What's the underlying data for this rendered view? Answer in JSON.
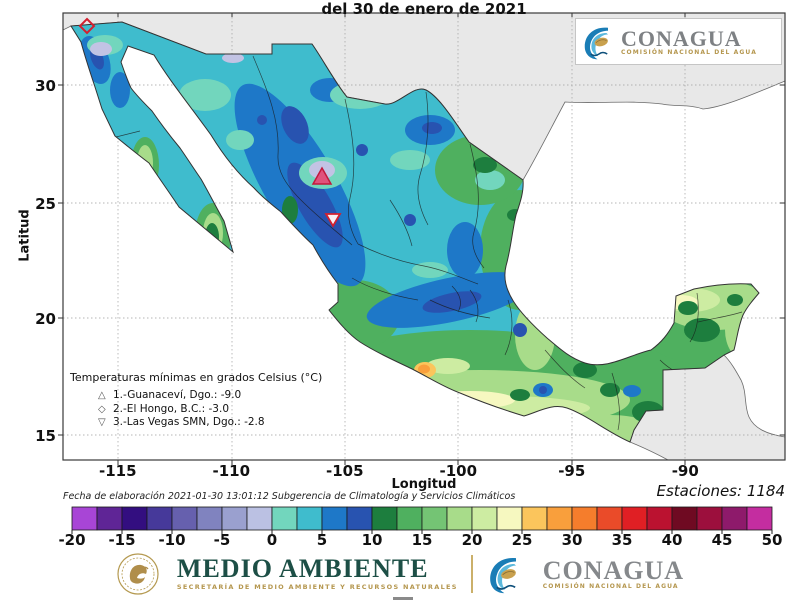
{
  "title": "del 30 de enero de 2021",
  "axes": {
    "x_label": "Longitud",
    "y_label": "Latitud",
    "x_ticks": [
      "-115",
      "-110",
      "-105",
      "-100",
      "-95",
      "-90"
    ],
    "y_ticks": [
      "30",
      "25",
      "20",
      "15"
    ]
  },
  "legend": {
    "title": "Temperaturas mínimas en grados Celsius (°C)",
    "items": [
      {
        "glyph": "△",
        "marker": "triangle-up",
        "label": "1.-Guanaceví, Dgo.: -9.0"
      },
      {
        "glyph": "◇",
        "marker": "diamond",
        "label": "2.-El Hongo, B.C.: -3.0"
      },
      {
        "glyph": "▽",
        "marker": "triangle-down",
        "label": "3.-Las Vegas SMN, Dgo.: -2.8"
      }
    ]
  },
  "annotations": {
    "made_on": "Fecha de elaboración 2021-01-30 13:01:12 Subgerencia de Climatología y Servicios Climáticos",
    "stations": "Estaciones: 1184"
  },
  "colorbar": {
    "min": -20,
    "max": 50,
    "segment_step": 2.5,
    "tick_step": 5,
    "tick_labels": [
      "-20",
      "-15",
      "-10",
      "-5",
      "0",
      "5",
      "10",
      "15",
      "20",
      "25",
      "30",
      "35",
      "40",
      "45",
      "50"
    ],
    "colors": [
      "#a845d6",
      "#5f2596",
      "#330e80",
      "#46399a",
      "#6660ae",
      "#8083bf",
      "#9aa0cf",
      "#bbc1e3",
      "#72d6bd",
      "#3fbccd",
      "#1e78c8",
      "#2853b0",
      "#1d7e3e",
      "#4fb05f",
      "#74c474",
      "#a8dc8a",
      "#cdeca2",
      "#f6f8c0",
      "#fbc55c",
      "#f99f3c",
      "#f57d2c",
      "#ea4b29",
      "#e01f24",
      "#bb1230",
      "#6f0a22",
      "#9c0f3d",
      "#8e1a6b",
      "#c42da0"
    ]
  },
  "branding": {
    "conagua_name": "CONAGUA",
    "conagua_sub": "COMISIÓN NACIONAL DEL AGUA",
    "medio_name": "MEDIO AMBIENTE",
    "medio_sub": "SECRETARÍA DE MEDIO AMBIENTE Y RECURSOS NATURALES"
  },
  "chart_data": {
    "type": "heatmap",
    "subtype": "filled-contour-temperature-map",
    "region": "México",
    "title": "del 30 de enero de 2021",
    "variable": "Temperaturas mínimas en grados Celsius (°C)",
    "xlabel": "Longitud",
    "ylabel": "Latitud",
    "xlim": [
      -117.5,
      -85.5
    ],
    "ylim": [
      13.8,
      33.2
    ],
    "x_ticks": [
      -115,
      -110,
      -105,
      -100,
      -95,
      -90
    ],
    "y_ticks": [
      15,
      20,
      25,
      30
    ],
    "grid": "dotted",
    "stations_reporting": 1184,
    "colorbar_scale": {
      "min": -20,
      "max": 50,
      "interval": 2.5,
      "label_step": 5
    },
    "minimum_extremes": [
      {
        "rank": 1,
        "station": "Guanaceví, Dgo.",
        "value_c": -9.0,
        "marker": "triangle-up",
        "approx_lon": -106.0,
        "approx_lat": 26.1
      },
      {
        "rank": 2,
        "station": "El Hongo, B.C.",
        "value_c": -3.0,
        "marker": "diamond",
        "approx_lon": -116.3,
        "approx_lat": 32.5
      },
      {
        "rank": 3,
        "station": "Las Vegas SMN, Dgo.",
        "value_c": -2.8,
        "marker": "triangle-down",
        "approx_lon": -105.5,
        "approx_lat": 24.2
      }
    ]
  }
}
